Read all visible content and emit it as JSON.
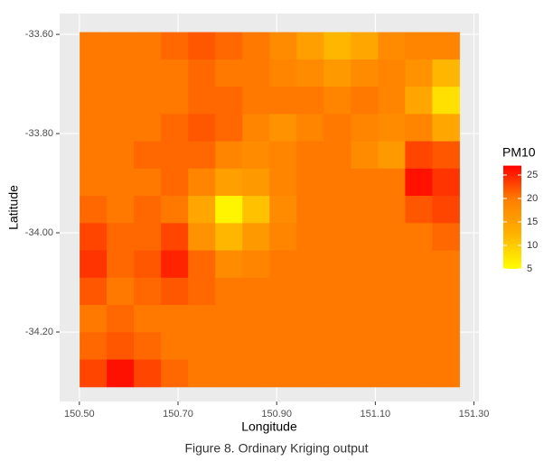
{
  "chart_data": {
    "type": "heatmap",
    "x_label": "Longitude",
    "y_label": "Latitude",
    "caption": "Figure 8. Ordinary Kriging output",
    "legend_title": "PM10",
    "x": [
      150.528,
      150.583,
      150.638,
      150.693,
      150.748,
      150.803,
      150.858,
      150.913,
      150.968,
      151.023,
      151.078,
      151.133,
      151.188,
      151.243
    ],
    "y": [
      -33.623,
      -33.678,
      -33.733,
      -33.788,
      -33.843,
      -33.898,
      -33.953,
      -34.008,
      -34.063,
      -34.118,
      -34.173,
      -34.228,
      -34.283
    ],
    "z": [
      [
        20,
        20,
        20,
        21,
        22,
        21,
        20,
        18,
        15,
        12,
        14,
        18,
        19,
        19
      ],
      [
        20,
        20,
        20,
        20,
        21,
        20,
        20,
        19,
        18,
        16,
        18,
        19,
        17,
        12
      ],
      [
        20,
        20,
        20,
        20,
        21,
        21,
        20,
        20,
        20,
        19,
        20,
        19,
        14,
        8
      ],
      [
        20,
        20,
        20,
        21,
        22,
        21,
        19,
        17,
        19,
        20,
        19,
        18,
        19,
        14
      ],
      [
        20,
        20,
        21,
        21,
        21,
        19,
        18,
        19,
        20,
        20,
        18,
        16,
        23,
        22
      ],
      [
        20,
        20,
        20,
        21,
        19,
        15,
        16,
        19,
        20,
        20,
        20,
        20,
        26,
        24
      ],
      [
        21,
        20,
        21,
        20,
        14,
        6,
        11,
        18,
        20,
        20,
        20,
        20,
        22,
        23
      ],
      [
        23,
        21,
        21,
        23,
        17,
        12,
        16,
        19,
        20,
        20,
        20,
        20,
        20,
        21
      ],
      [
        24,
        21,
        22,
        25,
        21,
        18,
        19,
        20,
        20,
        20,
        20,
        20,
        20,
        20
      ],
      [
        22,
        20,
        21,
        22,
        21,
        20,
        20,
        20,
        20,
        20,
        20,
        20,
        20,
        20
      ],
      [
        20,
        21,
        20,
        20,
        20,
        20,
        20,
        20,
        20,
        20,
        20,
        20,
        20,
        20
      ],
      [
        21,
        22,
        21,
        20,
        20,
        20,
        20,
        20,
        20,
        20,
        20,
        20,
        20,
        20
      ],
      [
        23,
        26,
        23,
        21,
        20,
        20,
        20,
        20,
        20,
        20,
        20,
        20,
        20,
        20
      ]
    ],
    "colors": [
      "#FFFF00",
      "#FFB300",
      "#FF7F00",
      "#FF0000"
    ],
    "zlim": [
      5,
      27
    ],
    "zticks": [
      5,
      10,
      15,
      20,
      25
    ],
    "xlim": [
      150.46,
      151.31
    ],
    "ylim": [
      -34.34,
      -33.558
    ],
    "xticks": [
      {
        "value": 150.5,
        "label": "150.50"
      },
      {
        "value": 150.7,
        "label": "150.70"
      },
      {
        "value": 150.9,
        "label": "150.90"
      },
      {
        "value": 151.1,
        "label": "151.10"
      },
      {
        "value": 151.3,
        "label": "151.30"
      }
    ],
    "yticks": [
      {
        "value": -33.6,
        "label": "-33.60"
      },
      {
        "value": -33.8,
        "label": "-33.80"
      },
      {
        "value": -34.0,
        "label": "-34.00"
      },
      {
        "value": -34.2,
        "label": "-34.20"
      }
    ],
    "grid": true
  }
}
